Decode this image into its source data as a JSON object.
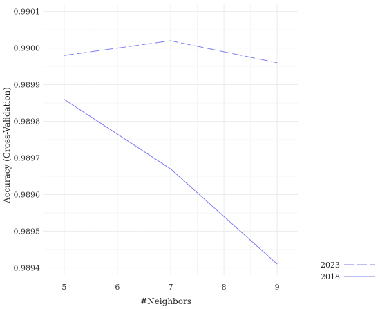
{
  "chart_data": {
    "type": "line",
    "xlabel": "#Neighbors",
    "ylabel": "Accuracy (Cross-Validation)",
    "x": [
      5,
      7,
      9
    ],
    "xlim": [
      4.6,
      9.4
    ],
    "ylim": [
      0.98938,
      0.99012
    ],
    "x_ticks": [
      "5",
      "6",
      "7",
      "8",
      "9"
    ],
    "y_ticks": [
      "0.9894",
      "0.9895",
      "0.9896",
      "0.9897",
      "0.9898",
      "0.9899",
      "0.9900",
      "0.9901"
    ],
    "grid": true,
    "legend_position": "bottom-right",
    "series": [
      {
        "name": "2023",
        "values": [
          0.98998,
          0.99002,
          0.98996
        ],
        "color": "#7b7bf2",
        "dash": "dashed"
      },
      {
        "name": "2018",
        "values": [
          0.98986,
          0.98967,
          0.98941
        ],
        "color": "#7b7bf2",
        "dash": "solid"
      }
    ]
  }
}
